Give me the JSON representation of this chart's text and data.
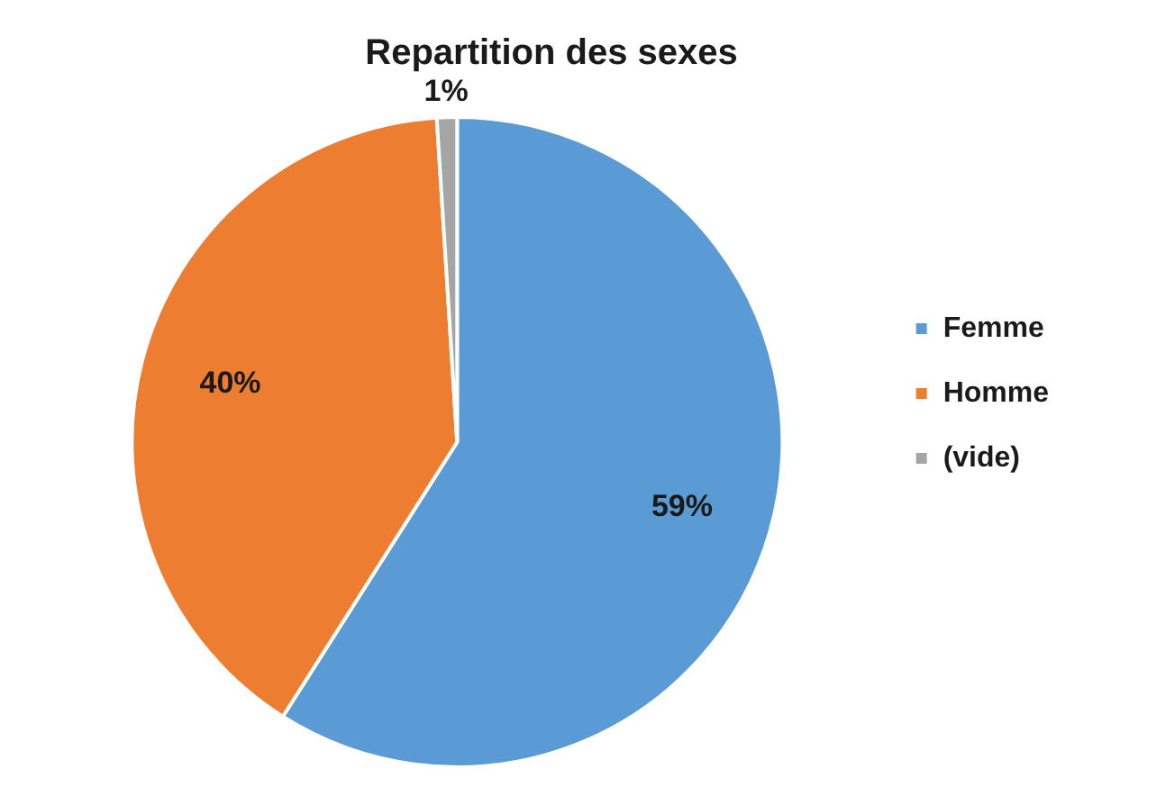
{
  "chart_data": {
    "type": "pie",
    "title": "Repartition des sexes",
    "categories": [
      "Femme",
      "Homme",
      "(vide)"
    ],
    "values": [
      59,
      40,
      1
    ],
    "colors": [
      "#5b9bd5",
      "#ed7d31",
      "#a5a5a5"
    ],
    "value_labels": [
      "59%",
      "40%",
      "1%"
    ],
    "legend": "right"
  }
}
